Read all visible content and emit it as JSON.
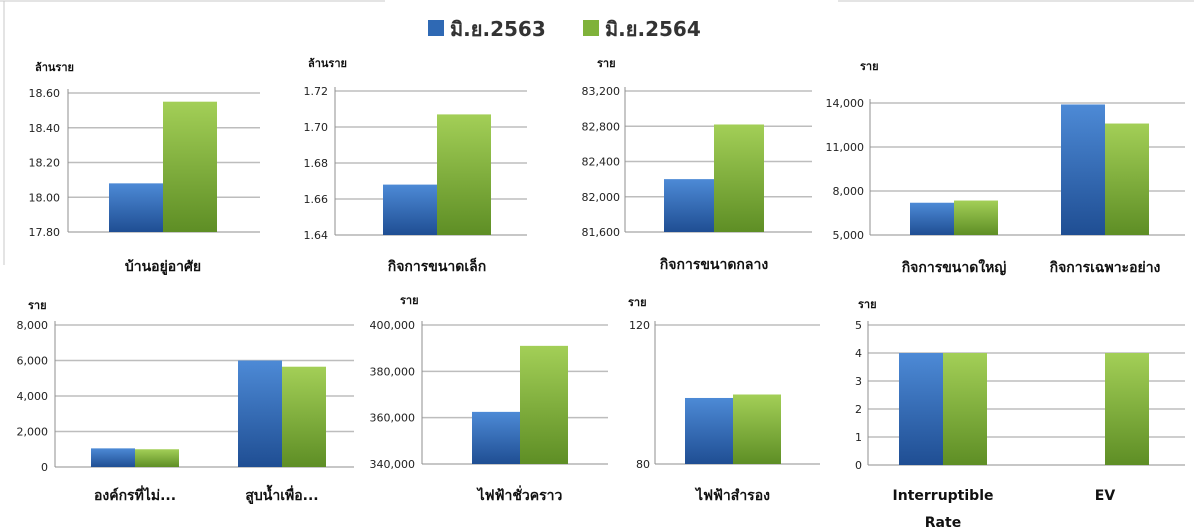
{
  "legend": {
    "items": [
      {
        "label": "มิ.ย.2563",
        "color": "#2f69b4"
      },
      {
        "label": "มิ.ย.2564",
        "color": "#7fb23a"
      }
    ]
  },
  "colors": {
    "series1_light": "#4d8ad6",
    "series1_dark": "#1f4e93",
    "series2_light": "#a3cf57",
    "series2_dark": "#5e8e25",
    "grid": "#bdbdbd",
    "axis": "#8f8f8f"
  },
  "chart_data": [
    {
      "type": "bar",
      "ylabel": "ล้านราย",
      "categories": [
        "บ้านอยู่อาศัย"
      ],
      "ylim": [
        17.8,
        18.6
      ],
      "ticks": [
        "17.80",
        "18.00",
        "18.20",
        "18.40",
        "18.60"
      ],
      "series": [
        {
          "name": "มิ.ย.2563",
          "values": [
            18.08
          ]
        },
        {
          "name": "มิ.ย.2564",
          "values": [
            18.55
          ]
        }
      ]
    },
    {
      "type": "bar",
      "ylabel": "ล้านราย",
      "categories": [
        "กิจการขนาดเล็ก"
      ],
      "ylim": [
        1.64,
        1.72
      ],
      "ticks": [
        "1.64",
        "1.66",
        "1.68",
        "1.70",
        "1.72"
      ],
      "series": [
        {
          "name": "มิ.ย.2563",
          "values": [
            1.668
          ]
        },
        {
          "name": "มิ.ย.2564",
          "values": [
            1.707
          ]
        }
      ]
    },
    {
      "type": "bar",
      "ylabel": "ราย",
      "categories": [
        "กิจการขนาดกลาง"
      ],
      "ylim": [
        81600,
        83200
      ],
      "ticks": [
        "81,600",
        "82,000",
        "82,400",
        "82,800",
        "83,200"
      ],
      "series": [
        {
          "name": "มิ.ย.2563",
          "values": [
            82200
          ]
        },
        {
          "name": "มิ.ย.2564",
          "values": [
            82820
          ]
        }
      ]
    },
    {
      "type": "bar",
      "ylabel": "ราย",
      "categories": [
        "กิจการขนาดใหญ่",
        "กิจการเฉพาะอย่าง"
      ],
      "ylim": [
        5000,
        14000
      ],
      "ticks": [
        "5,000",
        "8,000",
        "11,000",
        "14,000"
      ],
      "series": [
        {
          "name": "มิ.ย.2563",
          "values": [
            7200,
            13900
          ]
        },
        {
          "name": "มิ.ย.2564",
          "values": [
            7350,
            12600
          ]
        }
      ]
    },
    {
      "type": "bar",
      "ylabel": "ราย",
      "categories": [
        "องค์กรที่ไม่...",
        "สูบน้ำเพื่อ..."
      ],
      "ylim": [
        0,
        8000
      ],
      "ticks": [
        "0",
        "2,000",
        "4,000",
        "6,000",
        "8,000"
      ],
      "series": [
        {
          "name": "มิ.ย.2563",
          "values": [
            1050,
            6000
          ]
        },
        {
          "name": "มิ.ย.2564",
          "values": [
            1000,
            5650
          ]
        }
      ]
    },
    {
      "type": "bar",
      "ylabel": "ราย",
      "categories": [
        "ไฟฟ้าชั่วคราว"
      ],
      "ylim": [
        340000,
        400000
      ],
      "ticks": [
        "340,000",
        "360,000",
        "380,000",
        "400,000"
      ],
      "series": [
        {
          "name": "มิ.ย.2563",
          "values": [
            362500
          ]
        },
        {
          "name": "มิ.ย.2564",
          "values": [
            391000
          ]
        }
      ]
    },
    {
      "type": "bar",
      "ylabel": "ราย",
      "categories": [
        "ไฟฟ้าสำรอง"
      ],
      "ylim": [
        80,
        120
      ],
      "ticks": [
        "80",
        "120"
      ],
      "series": [
        {
          "name": "มิ.ย.2563",
          "values": [
            99
          ]
        },
        {
          "name": "มิ.ย.2564",
          "values": [
            100
          ]
        }
      ]
    },
    {
      "type": "bar",
      "ylabel": "ราย",
      "categories": [
        "Interruptible Rate",
        "EV"
      ],
      "ylim": [
        0,
        5
      ],
      "ticks": [
        "0",
        "1",
        "2",
        "3",
        "4",
        "5"
      ],
      "series": [
        {
          "name": "มิ.ย.2563",
          "values": [
            4,
            0
          ]
        },
        {
          "name": "มิ.ย.2564",
          "values": [
            4,
            4
          ]
        }
      ]
    }
  ]
}
